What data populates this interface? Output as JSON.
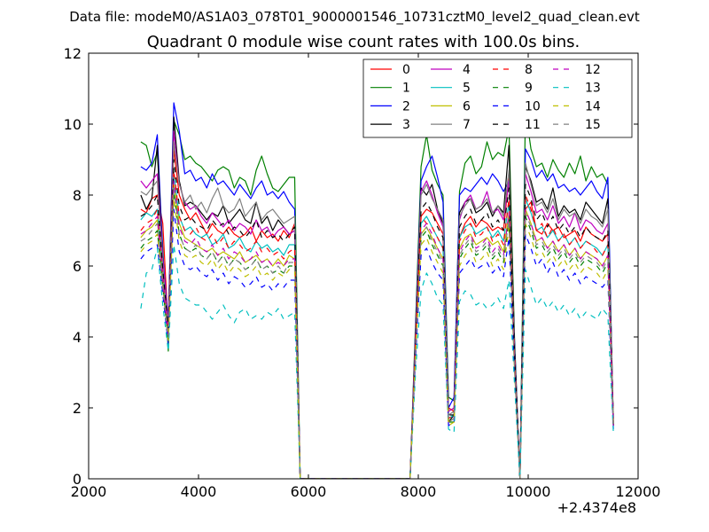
{
  "figure": {
    "suptitle": "Data file: modeM0/AS1A03_078T01_9000001546_10731cztM0_level2_quad_clean.evt",
    "background": "#ffffff"
  },
  "chart_data": {
    "type": "line",
    "title": "Quadrant 0 module wise count rates with 100.0s bins.",
    "xlabel": "",
    "ylabel": "",
    "xlim": [
      2000,
      12000
    ],
    "ylim": [
      0,
      12
    ],
    "x_offset_label": "+2.4374e8",
    "xticks": [
      2000,
      4000,
      6000,
      8000,
      10000,
      12000
    ],
    "yticks": [
      0,
      2,
      4,
      6,
      8,
      10,
      12
    ],
    "grid": false,
    "legend": {
      "position": "top-right",
      "columns": 4
    },
    "x": [
      2950,
      3050,
      3150,
      3250,
      3350,
      3450,
      3550,
      3650,
      3750,
      3850,
      3950,
      4050,
      4150,
      4250,
      4350,
      4450,
      4550,
      4650,
      4750,
      4850,
      4950,
      5050,
      5150,
      5250,
      5350,
      5450,
      5550,
      5650,
      5750,
      5850,
      7850,
      7950,
      8050,
      8150,
      8250,
      8350,
      8450,
      8550,
      8650,
      8750,
      8850,
      8950,
      9050,
      9150,
      9250,
      9350,
      9450,
      9550,
      9650,
      9750,
      9850,
      9950,
      10050,
      10150,
      10250,
      10350,
      10450,
      10550,
      10650,
      10750,
      10850,
      10950,
      11050,
      11150,
      11250,
      11350,
      11450,
      11550
    ],
    "series": [
      {
        "name": "0",
        "color": "#ff0000",
        "style": "solid",
        "values": [
          7.6,
          7.5,
          7.9,
          8.0,
          7.2,
          4.2,
          9.3,
          8.0,
          7.6,
          7.3,
          7.5,
          7.2,
          6.9,
          7.2,
          7.0,
          6.9,
          7.1,
          6.9,
          6.8,
          6.9,
          7.1,
          6.7,
          7.0,
          6.8,
          6.9,
          6.7,
          7.0,
          6.8,
          7.2,
          0.0,
          0.0,
          3.8,
          7.4,
          7.6,
          7.5,
          7.2,
          6.9,
          2.0,
          1.9,
          6.8,
          7.2,
          7.4,
          7.1,
          7.3,
          7.2,
          7.0,
          7.1,
          7.0,
          8.5,
          3.6,
          0.0,
          7.6,
          7.8,
          7.0,
          6.9,
          7.2,
          7.0,
          7.1,
          6.8,
          6.9,
          7.0,
          6.7,
          7.1,
          6.9,
          6.8,
          6.7,
          6.9,
          1.6
        ]
      },
      {
        "name": "1",
        "color": "#008000",
        "style": "solid",
        "values": [
          9.5,
          9.4,
          8.8,
          9.2,
          6.5,
          3.6,
          10.1,
          9.7,
          9.0,
          9.1,
          8.9,
          8.8,
          8.6,
          8.4,
          8.7,
          8.8,
          8.7,
          8.2,
          8.5,
          8.4,
          8.0,
          8.7,
          9.1,
          8.6,
          8.2,
          8.1,
          8.3,
          8.5,
          8.5,
          0.0,
          0.0,
          4.4,
          8.8,
          9.7,
          8.7,
          8.3,
          8.0,
          2.3,
          2.2,
          8.1,
          8.9,
          9.1,
          8.6,
          8.8,
          9.5,
          9.0,
          9.2,
          9.1,
          9.9,
          4.0,
          0.0,
          10.4,
          9.3,
          8.8,
          8.9,
          8.5,
          9.0,
          8.7,
          8.5,
          8.9,
          8.6,
          9.1,
          8.4,
          8.8,
          8.5,
          8.6,
          8.3,
          1.5
        ]
      },
      {
        "name": "2",
        "color": "#0000ff",
        "style": "solid",
        "values": [
          8.8,
          8.7,
          8.9,
          9.7,
          6.3,
          4.4,
          10.6,
          9.8,
          8.6,
          8.7,
          8.4,
          8.5,
          8.2,
          8.6,
          8.3,
          8.4,
          8.2,
          8.0,
          8.3,
          8.1,
          7.9,
          8.2,
          8.4,
          8.0,
          8.1,
          7.9,
          8.1,
          7.8,
          7.6,
          0.0,
          0.0,
          4.2,
          8.4,
          8.8,
          9.1,
          8.5,
          7.8,
          2.0,
          2.3,
          8.0,
          8.2,
          8.1,
          8.3,
          8.5,
          8.3,
          8.6,
          8.4,
          8.1,
          8.4,
          3.9,
          0.0,
          9.3,
          9.0,
          8.5,
          8.7,
          8.4,
          8.6,
          8.2,
          8.3,
          8.1,
          8.2,
          8.0,
          8.2,
          8.4,
          8.1,
          7.9,
          8.5,
          1.4
        ]
      },
      {
        "name": "3",
        "color": "#000000",
        "style": "solid",
        "values": [
          8.0,
          7.6,
          7.9,
          9.4,
          6.0,
          4.3,
          10.2,
          8.4,
          7.7,
          7.8,
          7.7,
          7.5,
          7.3,
          7.5,
          7.4,
          7.7,
          7.2,
          7.4,
          7.6,
          7.3,
          7.2,
          7.8,
          7.2,
          7.4,
          7.0,
          7.3,
          7.1,
          6.9,
          7.0,
          0.0,
          0.0,
          4.0,
          8.2,
          8.0,
          8.3,
          7.6,
          7.2,
          1.6,
          1.8,
          7.5,
          7.8,
          7.9,
          7.5,
          7.6,
          7.8,
          7.4,
          7.7,
          7.5,
          9.4,
          3.8,
          0.0,
          8.8,
          8.4,
          7.8,
          7.9,
          7.6,
          8.2,
          7.4,
          7.7,
          7.5,
          7.6,
          7.3,
          7.8,
          7.6,
          7.4,
          7.2,
          7.9,
          1.5
        ]
      },
      {
        "name": "4",
        "color": "#bf00bf",
        "style": "solid",
        "values": [
          8.4,
          8.2,
          8.4,
          8.6,
          6.2,
          4.3,
          9.8,
          8.3,
          7.8,
          7.6,
          7.7,
          7.4,
          7.2,
          7.5,
          7.3,
          7.1,
          7.3,
          7.0,
          7.2,
          7.1,
          6.9,
          7.3,
          7.0,
          7.1,
          6.8,
          7.0,
          7.1,
          6.9,
          7.0,
          0.0,
          0.0,
          4.1,
          8.1,
          8.4,
          8.0,
          7.5,
          7.1,
          1.9,
          2.0,
          7.3,
          7.8,
          8.0,
          7.6,
          7.7,
          8.1,
          7.5,
          7.6,
          7.3,
          8.4,
          3.6,
          0.0,
          8.6,
          8.1,
          7.5,
          7.6,
          7.3,
          7.7,
          7.2,
          7.4,
          7.1,
          7.5,
          7.0,
          7.3,
          7.2,
          7.0,
          6.9,
          7.2,
          1.6
        ]
      },
      {
        "name": "5",
        "color": "#00bfbf",
        "style": "solid",
        "values": [
          7.3,
          7.5,
          7.4,
          7.6,
          5.8,
          4.1,
          8.6,
          7.4,
          7.0,
          7.1,
          6.9,
          6.8,
          6.9,
          6.6,
          6.7,
          6.9,
          6.5,
          6.6,
          6.8,
          6.5,
          6.4,
          6.7,
          6.5,
          6.6,
          6.4,
          6.5,
          6.3,
          6.6,
          6.6,
          0.0,
          0.0,
          3.8,
          7.2,
          7.4,
          7.1,
          6.8,
          6.5,
          1.7,
          1.8,
          6.8,
          7.1,
          7.2,
          6.9,
          7.0,
          7.1,
          6.8,
          7.0,
          6.7,
          7.8,
          3.4,
          0.0,
          7.9,
          7.5,
          7.0,
          7.1,
          6.8,
          7.0,
          6.7,
          6.9,
          6.6,
          6.8,
          6.5,
          6.7,
          6.6,
          6.5,
          6.3,
          6.6,
          1.7
        ]
      },
      {
        "name": "6",
        "color": "#bfbf00",
        "style": "solid",
        "values": [
          6.8,
          7.0,
          7.1,
          7.3,
          5.5,
          4.0,
          8.3,
          7.2,
          6.8,
          6.7,
          6.6,
          6.5,
          6.4,
          6.5,
          6.3,
          6.4,
          6.3,
          6.2,
          6.4,
          6.1,
          6.2,
          6.3,
          6.1,
          6.2,
          6.0,
          6.2,
          6.0,
          6.3,
          6.2,
          0.0,
          0.0,
          3.7,
          6.9,
          7.1,
          6.8,
          6.5,
          6.2,
          1.6,
          1.7,
          6.5,
          6.8,
          6.9,
          6.6,
          6.7,
          6.8,
          6.6,
          6.7,
          6.4,
          7.5,
          3.3,
          0.0,
          7.6,
          7.2,
          6.7,
          6.8,
          6.5,
          6.7,
          6.4,
          6.6,
          6.3,
          6.5,
          6.2,
          6.4,
          6.3,
          6.2,
          6.0,
          6.3,
          1.6
        ]
      },
      {
        "name": "7",
        "color": "#808080",
        "style": "solid",
        "values": [
          8.1,
          8.0,
          8.2,
          8.4,
          6.0,
          4.2,
          9.5,
          8.3,
          7.8,
          8.0,
          7.6,
          7.8,
          7.5,
          7.9,
          8.2,
          7.7,
          7.5,
          7.6,
          7.9,
          7.4,
          7.6,
          7.8,
          7.3,
          7.5,
          7.6,
          7.4,
          7.2,
          7.3,
          7.4,
          0.0,
          0.0,
          4.0,
          8.0,
          8.3,
          7.9,
          7.6,
          7.3,
          1.8,
          1.9,
          7.4,
          7.7,
          7.9,
          7.6,
          7.7,
          7.9,
          7.5,
          7.7,
          7.4,
          8.7,
          3.7,
          0.0,
          8.9,
          8.3,
          7.7,
          7.8,
          7.5,
          7.9,
          7.3,
          7.6,
          7.4,
          7.5,
          7.2,
          7.6,
          7.4,
          7.3,
          7.1,
          7.6,
          1.7
        ]
      },
      {
        "name": "8",
        "color": "#ff0000",
        "style": "dashed",
        "values": [
          7.0,
          7.2,
          7.3,
          7.6,
          5.7,
          4.1,
          8.7,
          7.4,
          7.0,
          6.9,
          7.1,
          6.8,
          6.7,
          6.9,
          6.6,
          6.8,
          6.5,
          6.7,
          6.6,
          6.4,
          6.5,
          6.7,
          6.4,
          6.5,
          6.3,
          6.4,
          6.2,
          6.4,
          6.5,
          0.0,
          0.0,
          3.9,
          7.4,
          7.2,
          7.1,
          6.8,
          6.5,
          1.7,
          1.8,
          6.7,
          7.0,
          7.2,
          6.8,
          6.9,
          7.1,
          6.7,
          6.9,
          6.6,
          7.9,
          3.5,
          0.0,
          8.0,
          7.6,
          7.0,
          7.2,
          6.8,
          7.1,
          6.7,
          6.9,
          6.6,
          6.8,
          6.5,
          6.7,
          6.6,
          6.4,
          6.3,
          6.6,
          1.6
        ]
      },
      {
        "name": "9",
        "color": "#008000",
        "style": "dashed",
        "values": [
          6.5,
          6.7,
          6.8,
          7.0,
          5.4,
          3.9,
          8.1,
          6.9,
          6.5,
          6.4,
          6.5,
          6.3,
          6.2,
          6.4,
          6.1,
          6.3,
          6.0,
          6.2,
          6.1,
          5.9,
          6.0,
          6.2,
          5.9,
          6.0,
          5.8,
          5.9,
          5.8,
          6.0,
          6.0,
          0.0,
          0.0,
          3.6,
          6.8,
          7.0,
          6.6,
          6.3,
          6.0,
          1.6,
          1.6,
          6.2,
          6.5,
          6.7,
          6.3,
          6.4,
          6.6,
          6.2,
          6.4,
          6.1,
          7.3,
          3.2,
          0.0,
          7.4,
          7.0,
          6.5,
          6.6,
          6.3,
          6.5,
          6.2,
          6.4,
          6.1,
          6.3,
          6.0,
          6.2,
          6.1,
          6.0,
          5.8,
          6.1,
          1.5
        ]
      },
      {
        "name": "10",
        "color": "#0000ff",
        "style": "dashed",
        "values": [
          6.2,
          6.4,
          6.5,
          6.6,
          5.2,
          3.8,
          7.6,
          6.4,
          6.0,
          5.9,
          6.0,
          5.8,
          5.7,
          5.9,
          5.6,
          5.8,
          5.5,
          5.7,
          5.6,
          5.4,
          5.5,
          5.7,
          5.4,
          5.5,
          5.3,
          5.5,
          5.4,
          5.6,
          5.6,
          0.0,
          0.0,
          3.4,
          6.3,
          6.5,
          6.1,
          5.8,
          5.6,
          1.5,
          1.6,
          5.8,
          6.0,
          6.2,
          5.9,
          6.0,
          6.1,
          5.8,
          6.0,
          5.7,
          6.8,
          3.0,
          0.0,
          6.9,
          6.5,
          6.0,
          6.2,
          5.8,
          6.1,
          5.7,
          5.9,
          5.6,
          5.8,
          5.5,
          5.7,
          5.6,
          5.5,
          5.4,
          5.6,
          1.4
        ]
      },
      {
        "name": "11",
        "color": "#000000",
        "style": "dashed",
        "values": [
          7.4,
          7.5,
          7.7,
          8.0,
          5.9,
          4.2,
          9.0,
          7.7,
          7.3,
          7.4,
          7.2,
          7.1,
          7.0,
          7.3,
          7.1,
          7.2,
          6.9,
          7.1,
          7.0,
          6.8,
          7.0,
          7.3,
          6.8,
          7.0,
          6.8,
          6.9,
          6.7,
          6.9,
          7.1,
          0.0,
          0.0,
          3.9,
          7.6,
          7.8,
          7.5,
          7.1,
          6.8,
          1.8,
          1.8,
          7.1,
          7.4,
          7.6,
          7.2,
          7.3,
          7.5,
          7.1,
          7.3,
          7.0,
          8.2,
          3.6,
          0.0,
          8.3,
          7.9,
          7.3,
          7.5,
          7.1,
          7.4,
          7.0,
          7.2,
          6.9,
          7.1,
          6.8,
          7.1,
          6.9,
          6.8,
          6.7,
          7.0,
          1.6
        ]
      },
      {
        "name": "12",
        "color": "#bf00bf",
        "style": "dashed",
        "values": [
          6.9,
          7.0,
          7.2,
          7.4,
          5.6,
          4.0,
          8.4,
          7.1,
          6.7,
          6.6,
          6.8,
          6.5,
          6.4,
          6.6,
          6.3,
          6.5,
          6.2,
          6.4,
          6.3,
          6.1,
          6.2,
          6.4,
          6.1,
          6.2,
          6.0,
          6.1,
          6.0,
          6.2,
          6.2,
          0.0,
          0.0,
          3.7,
          7.0,
          7.2,
          6.9,
          6.5,
          6.2,
          1.6,
          1.7,
          6.4,
          6.7,
          6.9,
          6.5,
          6.6,
          6.8,
          6.4,
          6.6,
          6.3,
          7.5,
          3.3,
          0.0,
          7.6,
          7.2,
          6.7,
          6.8,
          6.5,
          6.7,
          6.4,
          6.6,
          6.3,
          6.5,
          6.2,
          6.4,
          6.3,
          6.2,
          6.0,
          6.3,
          1.5
        ]
      },
      {
        "name": "13",
        "color": "#00bfbf",
        "style": "dashed",
        "values": [
          4.8,
          5.8,
          5.9,
          6.5,
          4.9,
          3.6,
          6.6,
          5.5,
          5.1,
          5.0,
          4.9,
          4.9,
          4.7,
          4.5,
          4.7,
          4.9,
          4.6,
          4.4,
          4.7,
          4.8,
          4.5,
          4.6,
          4.5,
          4.7,
          4.6,
          4.8,
          4.5,
          4.6,
          4.7,
          0.0,
          0.0,
          3.0,
          5.3,
          5.8,
          5.5,
          5.1,
          4.9,
          1.4,
          1.3,
          5.0,
          5.3,
          5.2,
          4.9,
          5.0,
          4.8,
          4.9,
          5.1,
          4.8,
          5.6,
          2.7,
          0.0,
          5.9,
          5.4,
          4.9,
          5.1,
          4.8,
          5.0,
          4.7,
          4.9,
          4.6,
          4.8,
          4.5,
          4.7,
          4.6,
          4.5,
          4.8,
          4.6,
          1.3
        ]
      },
      {
        "name": "14",
        "color": "#bfbf00",
        "style": "dashed",
        "values": [
          6.4,
          6.6,
          6.7,
          6.9,
          5.4,
          3.9,
          7.9,
          6.7,
          6.3,
          6.2,
          6.3,
          6.1,
          6.0,
          6.2,
          5.9,
          6.1,
          5.8,
          6.0,
          5.9,
          5.7,
          5.8,
          6.0,
          5.7,
          5.8,
          5.6,
          5.8,
          5.7,
          5.9,
          5.9,
          0.0,
          0.0,
          3.5,
          6.6,
          6.8,
          6.4,
          6.1,
          5.8,
          1.5,
          1.6,
          6.0,
          6.3,
          6.5,
          6.1,
          6.2,
          6.4,
          6.0,
          6.2,
          5.9,
          7.1,
          3.1,
          0.0,
          7.2,
          6.8,
          6.3,
          6.4,
          6.1,
          6.3,
          6.0,
          6.2,
          5.9,
          6.1,
          5.8,
          6.0,
          5.9,
          5.8,
          5.6,
          5.9,
          1.5
        ]
      },
      {
        "name": "15",
        "color": "#808080",
        "style": "dashed",
        "values": [
          6.7,
          6.8,
          7.0,
          7.2,
          5.5,
          4.0,
          8.2,
          6.9,
          6.5,
          6.4,
          6.6,
          6.3,
          6.2,
          6.4,
          6.1,
          6.3,
          6.0,
          6.2,
          6.1,
          5.9,
          6.0,
          6.2,
          5.9,
          6.0,
          5.8,
          6.0,
          5.8,
          6.1,
          6.1,
          0.0,
          0.0,
          3.6,
          6.9,
          7.1,
          6.7,
          6.4,
          6.1,
          1.6,
          1.7,
          6.3,
          6.6,
          6.8,
          6.4,
          6.5,
          6.7,
          6.3,
          6.5,
          6.2,
          7.3,
          3.2,
          0.0,
          7.5,
          7.1,
          6.6,
          6.7,
          6.4,
          6.6,
          6.3,
          6.5,
          6.2,
          6.4,
          6.1,
          6.3,
          6.2,
          6.1,
          5.9,
          6.2,
          1.5
        ]
      }
    ]
  }
}
